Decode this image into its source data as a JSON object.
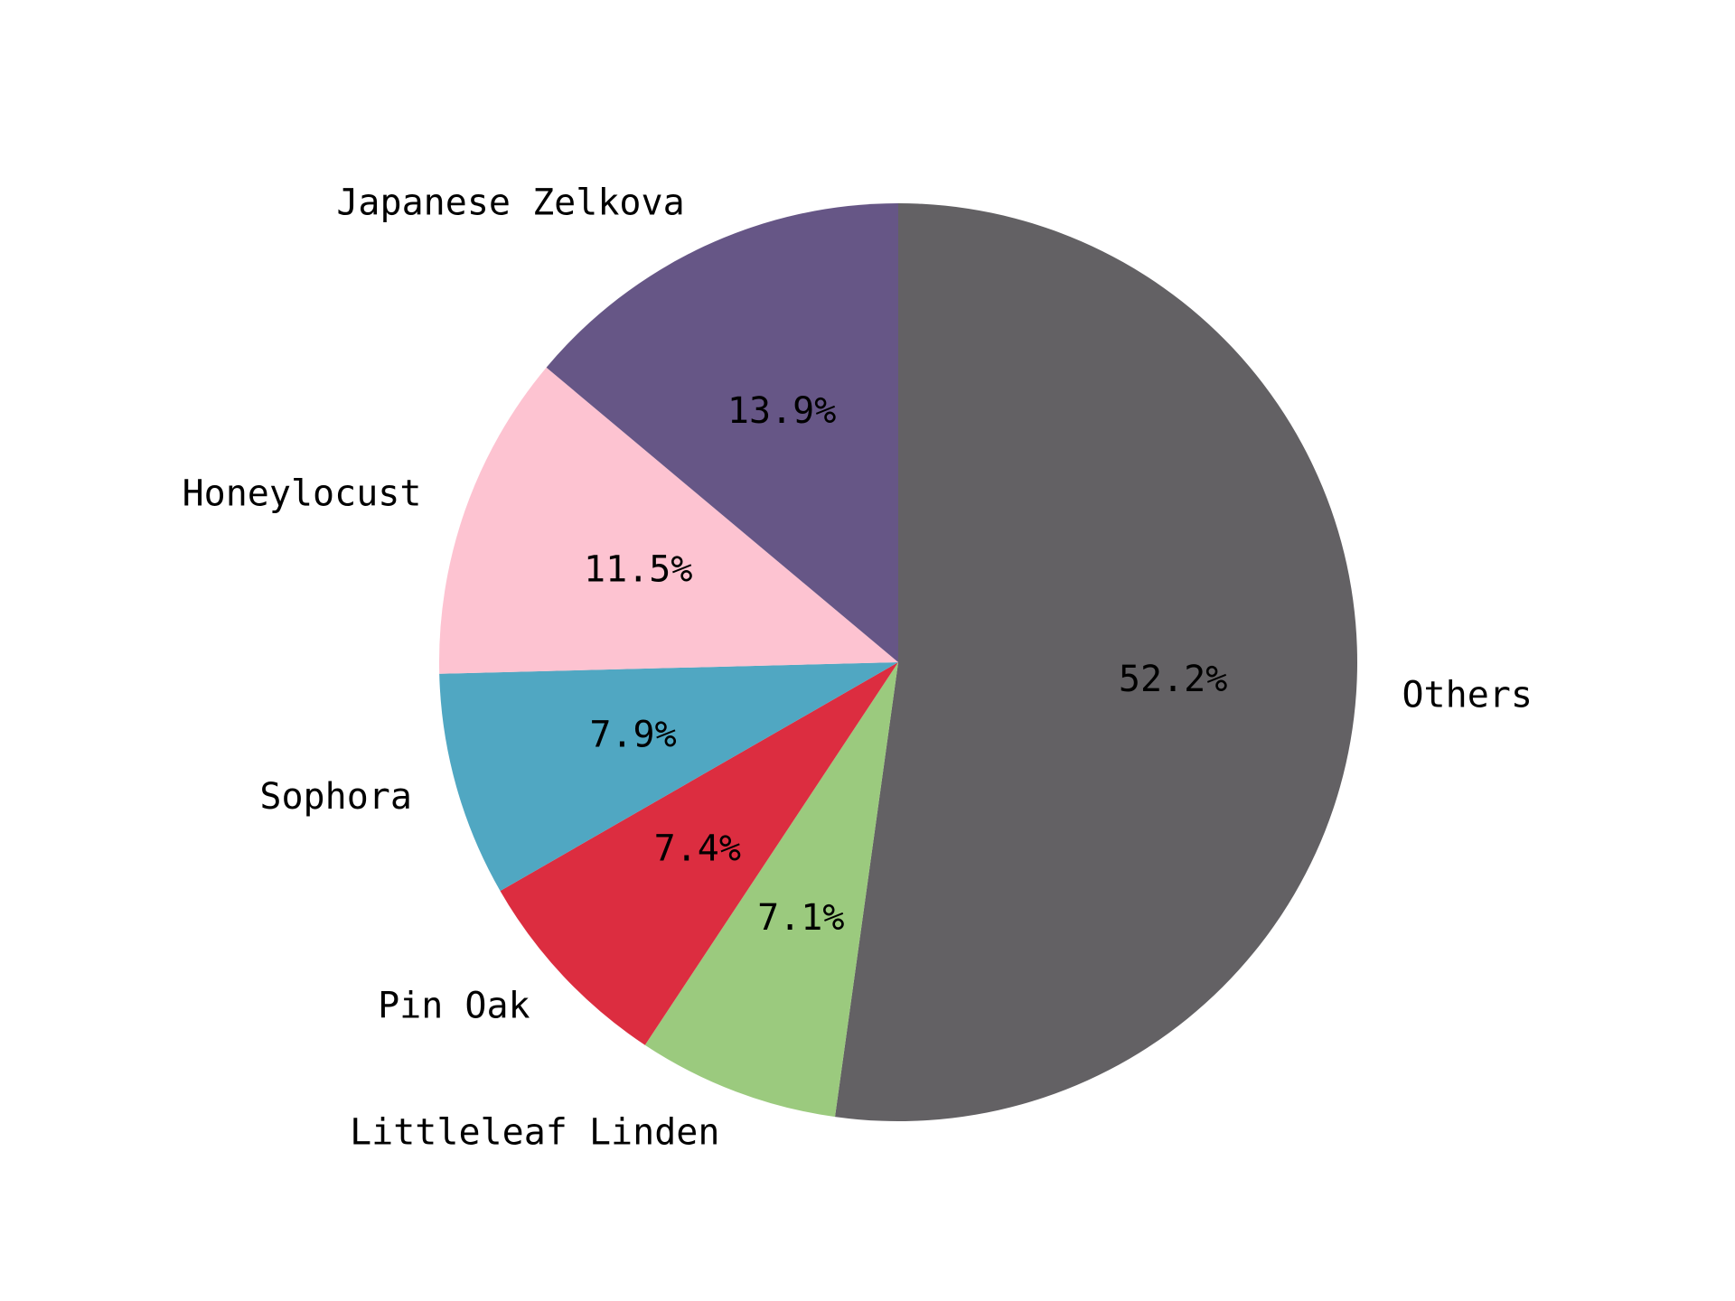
{
  "chart_data": {
    "type": "pie",
    "title": "",
    "slices": [
      {
        "label": "Others",
        "value": 52.2,
        "pct_label": "52.2%",
        "color": "#636164"
      },
      {
        "label": "Littleleaf Linden",
        "value": 7.1,
        "pct_label": "7.1%",
        "color": "#9bca7e"
      },
      {
        "label": "Pin Oak",
        "value": 7.4,
        "pct_label": "7.4%",
        "color": "#dc2d40"
      },
      {
        "label": "Sophora",
        "value": 7.9,
        "pct_label": "7.9%",
        "color": "#50a7c2"
      },
      {
        "label": "Honeylocust",
        "value": 11.5,
        "pct_label": "11.5%",
        "color": "#fdc3d1"
      },
      {
        "label": "Japanese Zelkova",
        "value": 13.9,
        "pct_label": "13.9%",
        "color": "#665686"
      }
    ],
    "start_angle": "top",
    "direction": "clockwise"
  }
}
